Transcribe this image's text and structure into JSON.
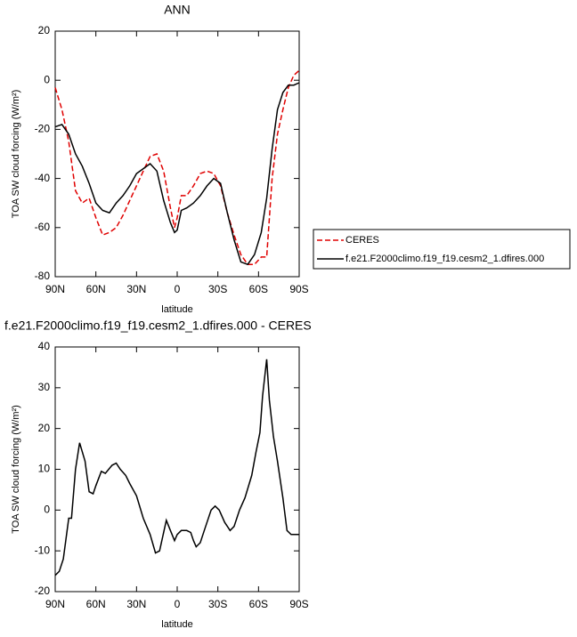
{
  "chart_data": [
    {
      "type": "line",
      "title": "ANN",
      "xlabel": "latitude",
      "ylabel": "TOA SW cloud forcing (W/m²)",
      "x": [
        90,
        85,
        80,
        75,
        70,
        65,
        60,
        55,
        50,
        45,
        40,
        35,
        30,
        25,
        20,
        15,
        10,
        5,
        2,
        0,
        -3,
        -7,
        -12,
        -17,
        -22,
        -27,
        -32,
        -37,
        -42,
        -47,
        -52,
        -57,
        -62,
        -66,
        -70,
        -74,
        -78,
        -82,
        -86,
        -90
      ],
      "series": [
        {
          "name": "CERES",
          "color": "#e00000",
          "dash": true,
          "values": [
            -3,
            -12,
            -25,
            -45,
            -50,
            -48,
            -56,
            -63,
            -62,
            -60,
            -55,
            -49,
            -43,
            -37,
            -31,
            -30,
            -37,
            -52,
            -60,
            -56,
            -47,
            -47,
            -43,
            -38,
            -37,
            -38,
            -43,
            -54,
            -63,
            -71,
            -75,
            -75,
            -72,
            -72,
            -40,
            -22,
            -12,
            -3,
            2,
            4
          ]
        },
        {
          "name": "f.e21.F2000climo.f19_f19.cesm2_1.dfires.000",
          "color": "#000000",
          "dash": false,
          "values": [
            -19,
            -18,
            -22,
            -30,
            -35,
            -42,
            -50,
            -53,
            -54,
            -50,
            -47,
            -43,
            -38,
            -36,
            -34,
            -37,
            -49,
            -58,
            -62,
            -61,
            -53,
            -52,
            -50,
            -47,
            -43,
            -40,
            -42,
            -54,
            -65,
            -74,
            -75,
            -71,
            -62,
            -48,
            -28,
            -12,
            -5,
            -2,
            -2,
            -1
          ]
        }
      ],
      "xlim": [
        90,
        -90
      ],
      "xticks": [
        {
          "value": 90,
          "label": "90N"
        },
        {
          "value": 60,
          "label": "60N"
        },
        {
          "value": 30,
          "label": "30N"
        },
        0,
        {
          "value": -30,
          "label": "30S"
        },
        {
          "value": -60,
          "label": "60S"
        },
        {
          "value": -90,
          "label": "90S"
        }
      ],
      "ylim": [
        -80,
        20
      ],
      "yticks": [
        -80,
        -60,
        -40,
        -20,
        0,
        20
      ],
      "legend": "right"
    },
    {
      "type": "line",
      "title": "f.e21.F2000climo.f19_f19.cesm2_1.dfires.000 - CERES",
      "xlabel": "latitude",
      "ylabel": "TOA SW cloud forcing (W/m²)",
      "x": [
        90,
        87,
        84,
        80,
        78,
        75,
        72,
        68,
        65,
        62,
        60,
        56,
        53,
        48,
        45,
        42,
        38,
        35,
        30,
        25,
        20,
        16,
        13,
        8,
        5,
        2,
        0,
        -3,
        -7,
        -10,
        -12,
        -14,
        -17,
        -20,
        -25,
        -28,
        -31,
        -35,
        -39,
        -42,
        -46,
        -50,
        -55,
        -58,
        -61,
        -63,
        -66,
        -68,
        -71,
        -74,
        -78,
        -81,
        -84,
        -90
      ],
      "values": [
        -16,
        -15,
        -12,
        -2,
        -2,
        10,
        16.5,
        12,
        4.5,
        4,
        6,
        9.5,
        9,
        11,
        11.5,
        10,
        8.5,
        6.5,
        3.5,
        -2,
        -6,
        -10.5,
        -10,
        -2.5,
        -5,
        -7.5,
        -6,
        -5,
        -5,
        -5.5,
        -7.5,
        -9,
        -8,
        -5,
        0,
        1,
        0,
        -3,
        -5,
        -4,
        0,
        3,
        8.5,
        14,
        19,
        28,
        37,
        27,
        18,
        12,
        3,
        -5,
        -6,
        -6
      ],
      "color": "#000000",
      "xlim": [
        90,
        -90
      ],
      "xticks": [
        {
          "value": 90,
          "label": "90N"
        },
        {
          "value": 60,
          "label": "60N"
        },
        {
          "value": 30,
          "label": "30N"
        },
        0,
        {
          "value": -30,
          "label": "30S"
        },
        {
          "value": -60,
          "label": "60S"
        },
        {
          "value": -90,
          "label": "90S"
        }
      ],
      "ylim": [
        -20,
        40
      ],
      "yticks": [
        -20,
        -10,
        0,
        10,
        20,
        30,
        40
      ]
    }
  ]
}
